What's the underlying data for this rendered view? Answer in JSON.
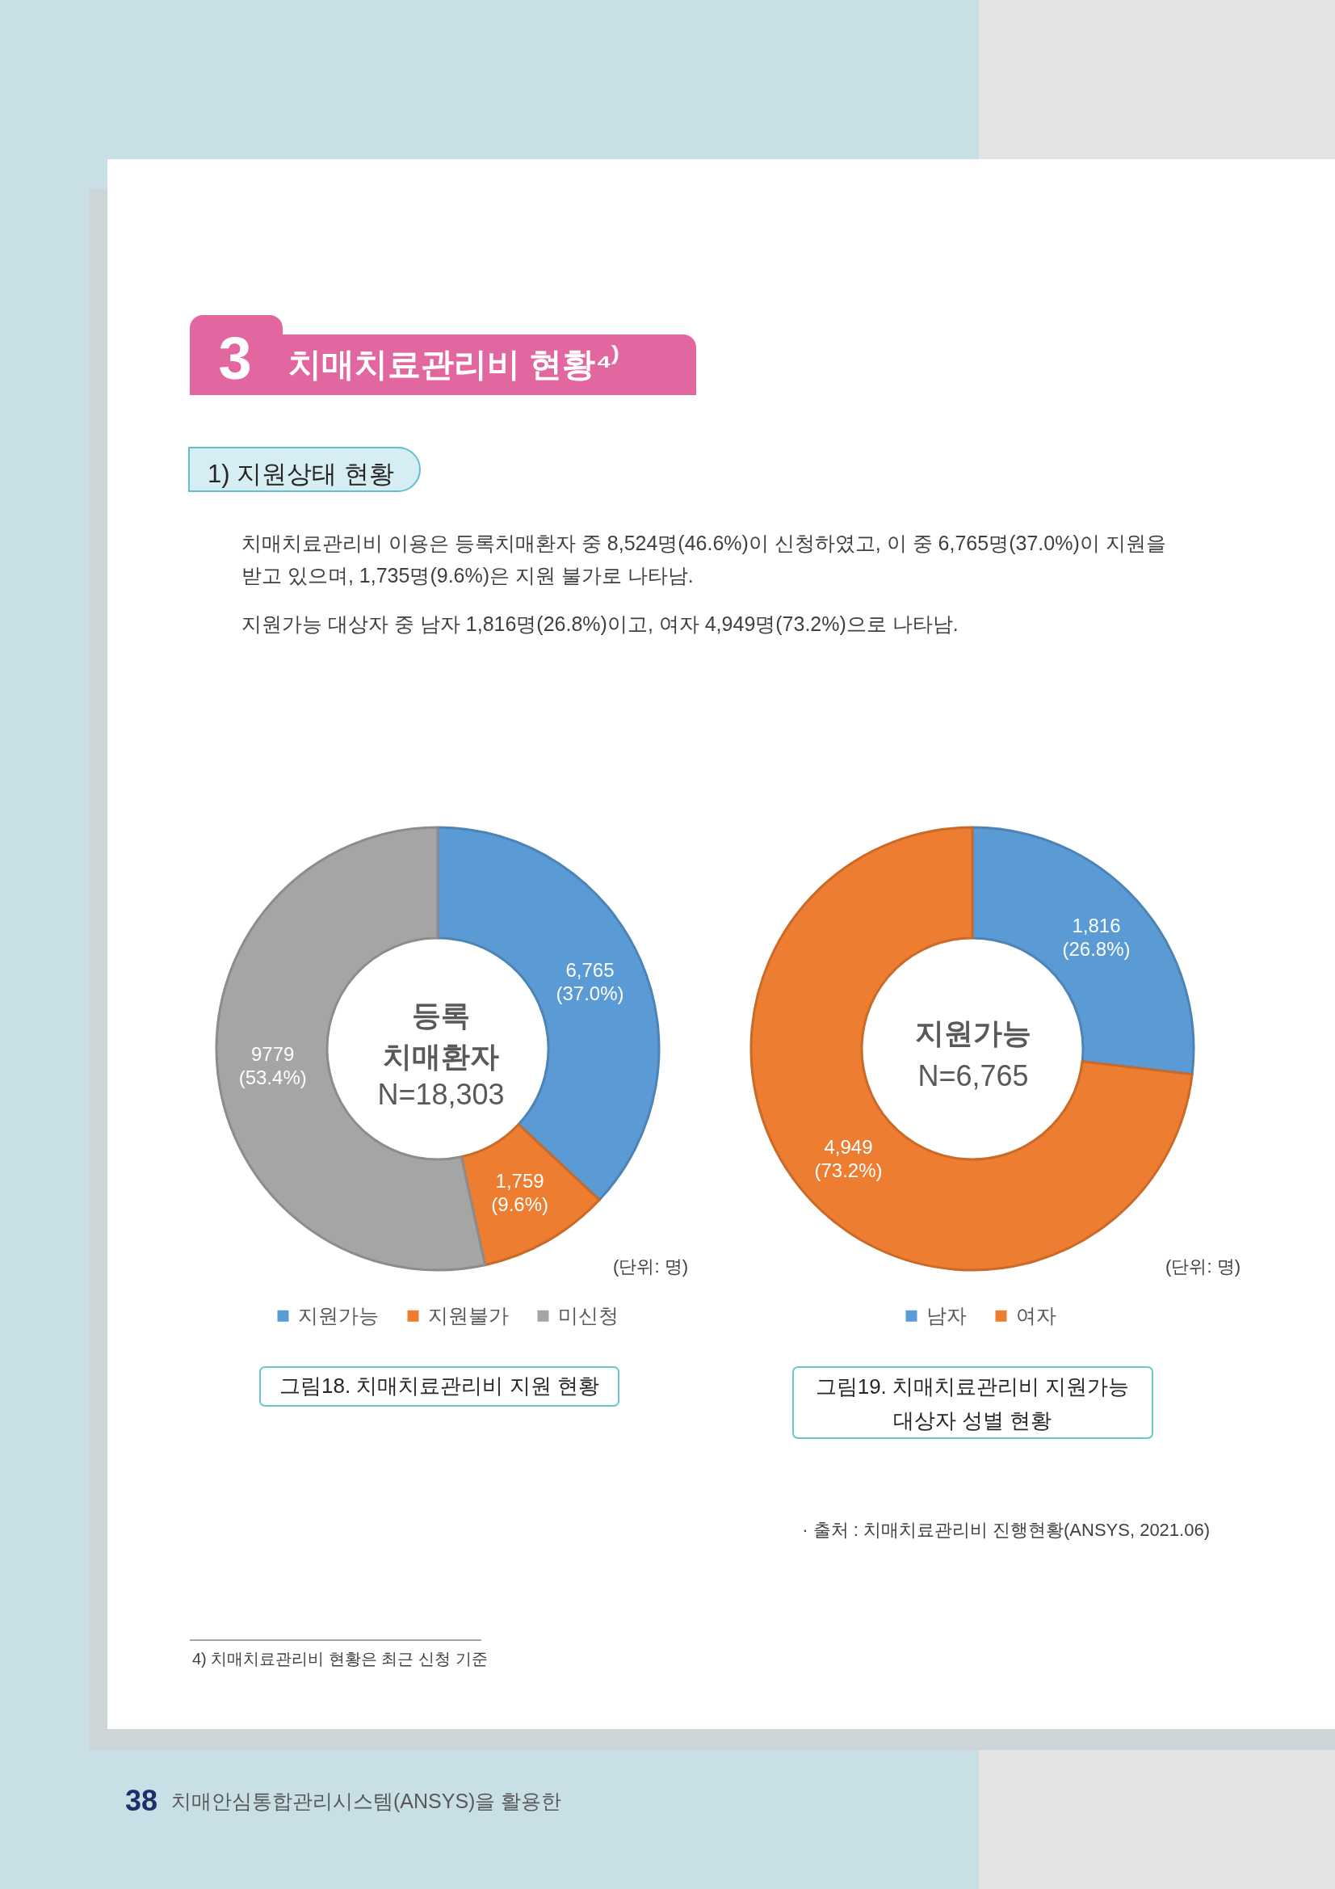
{
  "chart_data": [
    {
      "type": "donut",
      "title": "그림18. 치매치료관리비 지원 현황",
      "categories": [
        "지원가능",
        "지원불가",
        "미신청"
      ],
      "values": [
        6765,
        1759,
        9779
      ],
      "colors": [
        "#5b9bd5",
        "#ed7d31",
        "#a5a5a5"
      ],
      "value_labels": [
        "6,765\n(37.0%)",
        "1,759\n(9.6%)",
        "9779\n(53.4%)"
      ],
      "legend": "bottom",
      "annotations": [
        "3",
        "치매치료관리비 현황⁴⁾",
        "1) 지원상태 현황",
        "치매치료관리비 이용은 등록치매환자 중 8,524명(46.6%)이 신청하였고, 이 중 6,765명(37.0%)이 지원을\n받고 있으며, 1,735명(9.6%)은 지원 불가로 나타남.",
        "지원가능 대상자 중 남자 1,816명(26.8%)이고, 여자 4,949명(73.2%)으로 나타남.",
        "등록\n치매환자",
        "N=18,303",
        "(단위: 명)"
      ]
    },
    {
      "type": "donut",
      "title": "그림19. 치매치료관리비 지원가능\n대상자 성별 현황",
      "categories": [
        "남자",
        "여자"
      ],
      "values": [
        1816,
        4949
      ],
      "colors": [
        "#5b9bd5",
        "#ed7d31"
      ],
      "value_labels": [
        "1,816\n(26.8%)",
        "4,949\n(73.2%)"
      ],
      "legend": "bottom",
      "annotations": [
        "지원가능",
        "N=6,765",
        "(단위: 명)",
        "· 출처 : 치매치료관리비 진행현황(ANSYS, 2021.06)",
        "4) 치매치료관리비 현황은 최근 신청 기준",
        "38",
        "치매안심통합관리시스템(ANSYS)을 활용한"
      ]
    }
  ]
}
